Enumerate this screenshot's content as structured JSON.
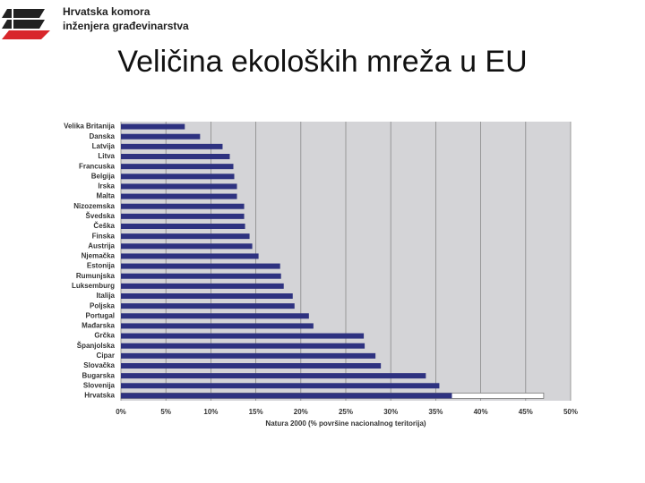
{
  "header": {
    "org_line1": "Hrvatska komora",
    "org_line2": "inženjera građevinarstva"
  },
  "chart_data": {
    "type": "hbar",
    "title": "Veličina ekoloških mreža u EU",
    "x_label": "Natura 2000 (% površine nacionalnog teritorija)",
    "categories": [
      "Velika Britanija",
      "Danska",
      "Latvija",
      "Litva",
      "Francuska",
      "Belgija",
      "Irska",
      "Malta",
      "Nizozemska",
      "Švedska",
      "Češka",
      "Finska",
      "Austrija",
      "Njemačka",
      "Estonija",
      "Rumunjska",
      "Luksemburg",
      "Italija",
      "Poljska",
      "Portugal",
      "Mađarska",
      "Grčka",
      "Španjolska",
      "Cipar",
      "Slovačka",
      "Bugarska",
      "Slovenija",
      "Hrvatska"
    ],
    "series": [
      {
        "color": "#2e3280",
        "values": [
          7.1,
          8.8,
          11.3,
          12.1,
          12.5,
          12.6,
          12.9,
          12.9,
          13.7,
          13.7,
          13.8,
          14.3,
          14.6,
          15.3,
          17.7,
          17.8,
          18.1,
          19.1,
          19.3,
          20.9,
          21.4,
          27.0,
          27.1,
          28.3,
          28.9,
          33.9,
          35.4,
          36.8
        ]
      },
      {
        "color": "#ffffff",
        "values": [
          null,
          null,
          null,
          null,
          null,
          null,
          null,
          null,
          null,
          null,
          null,
          null,
          null,
          null,
          null,
          null,
          null,
          null,
          null,
          null,
          null,
          null,
          null,
          null,
          null,
          null,
          null,
          47
        ]
      }
    ],
    "xlim": [
      0,
      50
    ],
    "xticks": [
      {
        "value": 0,
        "label": "0%"
      },
      {
        "value": 5,
        "label": "5%"
      },
      {
        "value": 10,
        "label": "10%"
      },
      {
        "value": 15,
        "label": "15%"
      },
      {
        "value": 20,
        "label": "20%"
      },
      {
        "value": 25,
        "label": "25%"
      },
      {
        "value": 30,
        "label": "30%"
      },
      {
        "value": 35,
        "label": "35%"
      },
      {
        "value": 40,
        "label": "40%"
      },
      {
        "value": 45,
        "label": "45%"
      },
      {
        "value": 50,
        "label": "50%"
      }
    ],
    "grid": true,
    "background": "#d4d4d7"
  }
}
